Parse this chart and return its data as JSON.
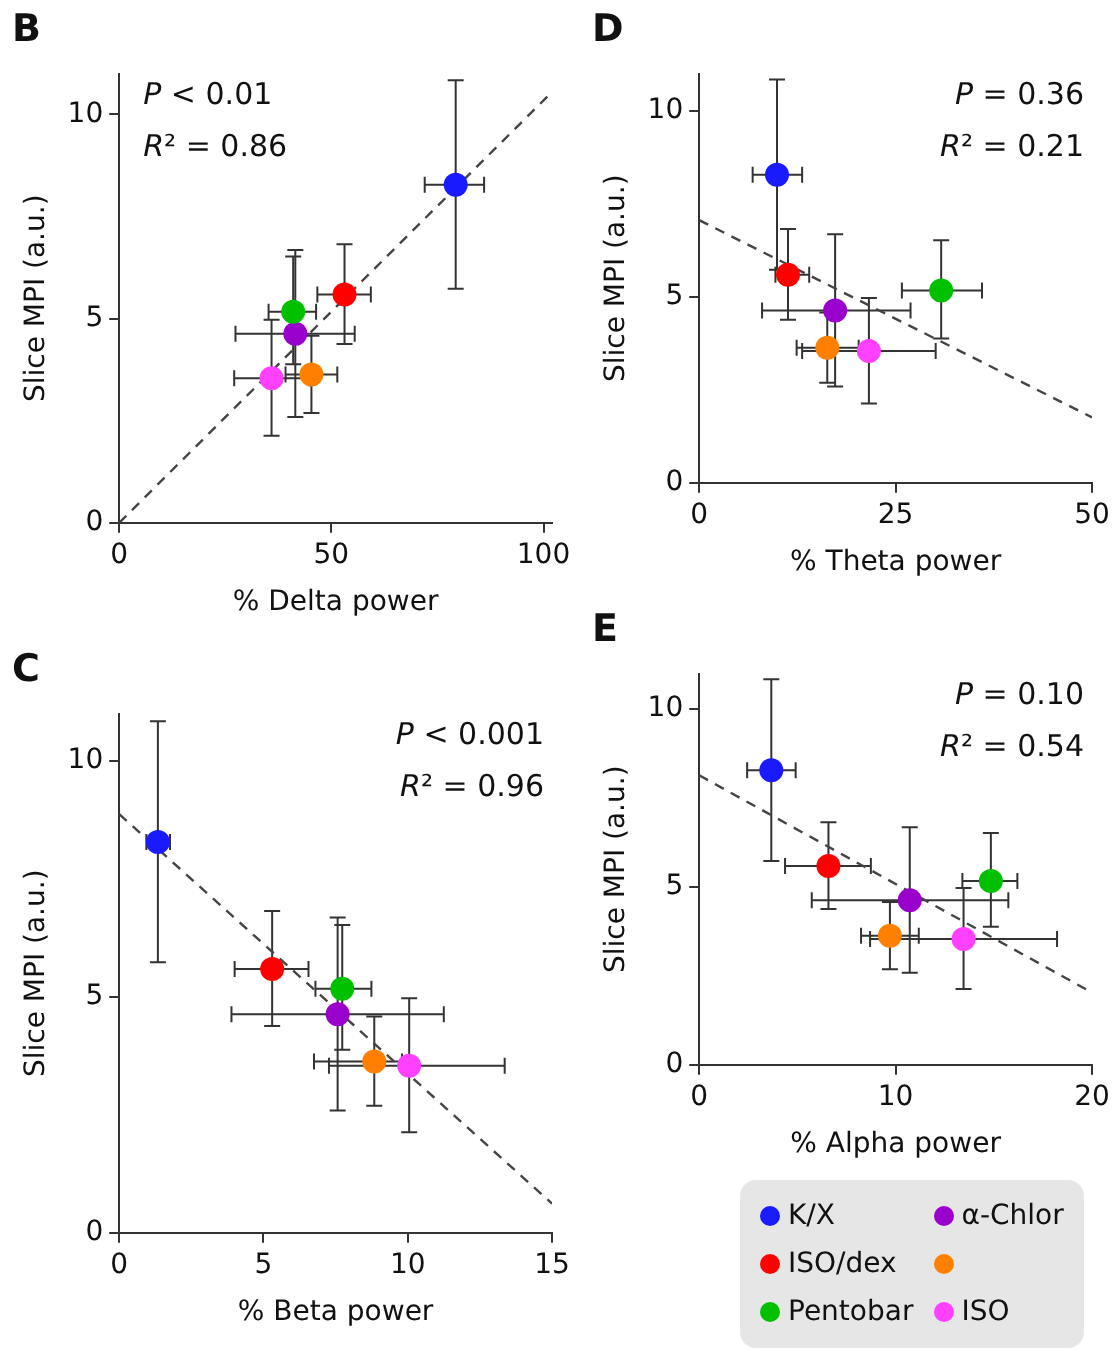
{
  "chart_data": [
    {
      "type": "scatter",
      "title": "B",
      "xlabel": "% Delta power",
      "ylabel": "Slice MPI (a.u.)",
      "xlim": [
        0,
        102
      ],
      "xticks": [
        0,
        50,
        100
      ],
      "ylim": [
        0,
        11
      ],
      "yticks": [
        0,
        5,
        10
      ],
      "annotations": [
        "P < 0.01",
        "R² = 0.86"
      ],
      "series": [
        {
          "color": "#1a1aff",
          "x": [
            79.3
          ],
          "values": [
            8.28
          ],
          "xerrors": [
            [
              72,
              86
            ]
          ],
          "errors": [
            [
              5.73,
              10.84
            ]
          ]
        },
        {
          "color": "#ff0000",
          "x": [
            53.1
          ],
          "values": [
            5.59
          ],
          "xerrors": [
            [
              46.7,
              59.3
            ]
          ],
          "errors": [
            [
              4.38,
              6.82
            ]
          ]
        },
        {
          "color": "#00c000",
          "x": [
            41
          ],
          "values": [
            5.17
          ],
          "xerrors": [
            [
              35.2,
              46.4
            ]
          ],
          "errors": [
            [
              3.88,
              6.52
            ]
          ]
        },
        {
          "color": "#9900cc",
          "x": [
            41.5
          ],
          "values": [
            4.63
          ],
          "xerrors": [
            [
              27.4,
              55.5
            ]
          ],
          "errors": [
            [
              2.59,
              6.68
            ]
          ]
        },
        {
          "color": "#ff8000",
          "x": [
            45.3
          ],
          "values": [
            3.63
          ],
          "xerrors": [
            [
              39.2,
              51.4
            ]
          ],
          "errors": [
            [
              2.69,
              4.58
            ]
          ]
        },
        {
          "color": "#ff40ff",
          "x": [
            35.9
          ],
          "values": [
            3.54
          ],
          "xerrors": [
            [
              27.1,
              44.7
            ]
          ],
          "errors": [
            [
              2.13,
              4.97
            ]
          ]
        },
        {
          "type": "line",
          "color": "#444444",
          "line_style": "dashed",
          "marker": "none",
          "x": [
            0,
            102
          ],
          "values": [
            0,
            10.55
          ]
        }
      ]
    },
    {
      "type": "scatter",
      "title": "D",
      "xlabel": "% Theta power",
      "ylabel": "Slice MPI (a.u.)",
      "xlim": [
        0,
        50
      ],
      "xticks": [
        0,
        25,
        50
      ],
      "ylim": [
        0,
        11
      ],
      "yticks": [
        0,
        5,
        10
      ],
      "annotations": [
        "P = 0.36",
        "R² = 0.21"
      ],
      "series": [
        {
          "color": "#1a1aff",
          "x": [
            9.9
          ],
          "values": [
            8.28
          ],
          "xerrors": [
            [
              6.8,
              13.1
            ]
          ],
          "errors": [
            [
              5.73,
              10.84
            ]
          ]
        },
        {
          "color": "#ff0000",
          "x": [
            11.3
          ],
          "values": [
            5.59
          ],
          "xerrors": [
            [
              9.7,
              14
            ]
          ],
          "errors": [
            [
              4.38,
              6.82
            ]
          ]
        },
        {
          "color": "#00c000",
          "x": [
            30.8
          ],
          "values": [
            5.17
          ],
          "xerrors": [
            [
              25.8,
              36
            ]
          ],
          "errors": [
            [
              3.88,
              6.52
            ]
          ]
        },
        {
          "color": "#9900cc",
          "x": [
            17.3
          ],
          "values": [
            4.63
          ],
          "xerrors": [
            [
              8,
              26.9
            ]
          ],
          "errors": [
            [
              2.59,
              6.68
            ]
          ]
        },
        {
          "color": "#ff8000",
          "x": [
            16.3
          ],
          "values": [
            3.63
          ],
          "xerrors": [
            [
              12.4,
              20.3
            ]
          ],
          "errors": [
            [
              2.69,
              4.58
            ]
          ]
        },
        {
          "color": "#ff40ff",
          "x": [
            21.6
          ],
          "values": [
            3.54
          ],
          "xerrors": [
            [
              13.1,
              30.1
            ]
          ],
          "errors": [
            [
              2.13,
              4.97
            ]
          ]
        },
        {
          "type": "line",
          "color": "#444444",
          "line_style": "dashed",
          "marker": "none",
          "x": [
            0,
            50
          ],
          "values": [
            7.06,
            1.76
          ]
        }
      ]
    },
    {
      "type": "scatter",
      "title": "C",
      "xlabel": "% Beta power",
      "ylabel": "Slice MPI (a.u.)",
      "xlim": [
        0,
        15
      ],
      "xticks": [
        0,
        5,
        10,
        15
      ],
      "ylim": [
        0,
        11
      ],
      "yticks": [
        0,
        5,
        10
      ],
      "annotations": [
        "P < 0.001",
        "R² = 0.96"
      ],
      "series": [
        {
          "color": "#1a1aff",
          "x": [
            1.34
          ],
          "values": [
            8.28
          ],
          "xerrors": [
            [
              0.94,
              1.76
            ]
          ],
          "errors": [
            [
              5.73,
              10.84
            ]
          ]
        },
        {
          "color": "#ff0000",
          "x": [
            5.3
          ],
          "values": [
            5.59
          ],
          "xerrors": [
            [
              4,
              6.56
            ]
          ],
          "errors": [
            [
              4.38,
              6.82
            ]
          ]
        },
        {
          "color": "#00c000",
          "x": [
            7.73
          ],
          "values": [
            5.17
          ],
          "xerrors": [
            [
              6.8,
              8.74
            ]
          ],
          "errors": [
            [
              3.88,
              6.52
            ]
          ]
        },
        {
          "color": "#9900cc",
          "x": [
            7.57
          ],
          "values": [
            4.63
          ],
          "xerrors": [
            [
              3.89,
              11.25
            ]
          ],
          "errors": [
            [
              2.59,
              6.68
            ]
          ]
        },
        {
          "color": "#ff8000",
          "x": [
            8.84
          ],
          "values": [
            3.63
          ],
          "xerrors": [
            [
              6.75,
              9.8
            ]
          ],
          "errors": [
            [
              2.69,
              4.58
            ]
          ]
        },
        {
          "color": "#ff40ff",
          "x": [
            10.05
          ],
          "values": [
            3.54
          ],
          "xerrors": [
            [
              7.27,
              13.36
            ]
          ],
          "errors": [
            [
              2.13,
              4.97
            ]
          ]
        },
        {
          "type": "line",
          "color": "#444444",
          "line_style": "dashed",
          "marker": "none",
          "x": [
            0,
            15
          ],
          "values": [
            8.87,
            0.62
          ]
        }
      ]
    },
    {
      "type": "scatter",
      "title": "E",
      "xlabel": "% Alpha power",
      "ylabel": "Slice MPI (a.u.)",
      "xlim": [
        0,
        20
      ],
      "xticks": [
        0,
        10,
        20
      ],
      "ylim": [
        0,
        11
      ],
      "yticks": [
        0,
        5,
        10
      ],
      "annotations": [
        "P = 0.10",
        "R² = 0.54"
      ],
      "legend": "bottom",
      "series": [
        {
          "name": "K/X",
          "color": "#1a1aff",
          "x": [
            3.67
          ],
          "values": [
            8.28
          ],
          "xerrors": [
            [
              2.44,
              4.91
            ]
          ],
          "errors": [
            [
              5.73,
              10.84
            ]
          ]
        },
        {
          "name": "ISO/dex",
          "color": "#ff0000",
          "x": [
            6.58
          ],
          "values": [
            5.59
          ],
          "xerrors": [
            [
              4.37,
              8.74
            ]
          ],
          "errors": [
            [
              4.38,
              6.82
            ]
          ]
        },
        {
          "name": "Pentobar",
          "color": "#00c000",
          "x": [
            14.85
          ],
          "values": [
            5.17
          ],
          "xerrors": [
            [
              13.4,
              16.2
            ]
          ],
          "errors": [
            [
              3.88,
              6.52
            ]
          ]
        },
        {
          "name": "α-Chlor",
          "color": "#9900cc",
          "x": [
            10.72
          ],
          "values": [
            4.63
          ],
          "xerrors": [
            [
              5.73,
              15.74
            ]
          ],
          "errors": [
            [
              2.59,
              6.68
            ]
          ]
        },
        {
          "color": "#ff8000",
          "x": [
            9.71
          ],
          "values": [
            3.63
          ],
          "xerrors": [
            [
              8.24,
              11.18
            ]
          ],
          "errors": [
            [
              2.69,
              4.58
            ]
          ]
        },
        {
          "name": "ISO",
          "color": "#ff40ff",
          "x": [
            13.46
          ],
          "values": [
            3.54
          ],
          "xerrors": [
            [
              8.7,
              18.22
            ]
          ],
          "errors": [
            [
              2.13,
              4.97
            ]
          ]
        },
        {
          "type": "line",
          "color": "#444444",
          "line_style": "dashed",
          "marker": "none",
          "x": [
            0,
            20
          ],
          "values": [
            8.14,
            2.03
          ]
        }
      ]
    }
  ]
}
